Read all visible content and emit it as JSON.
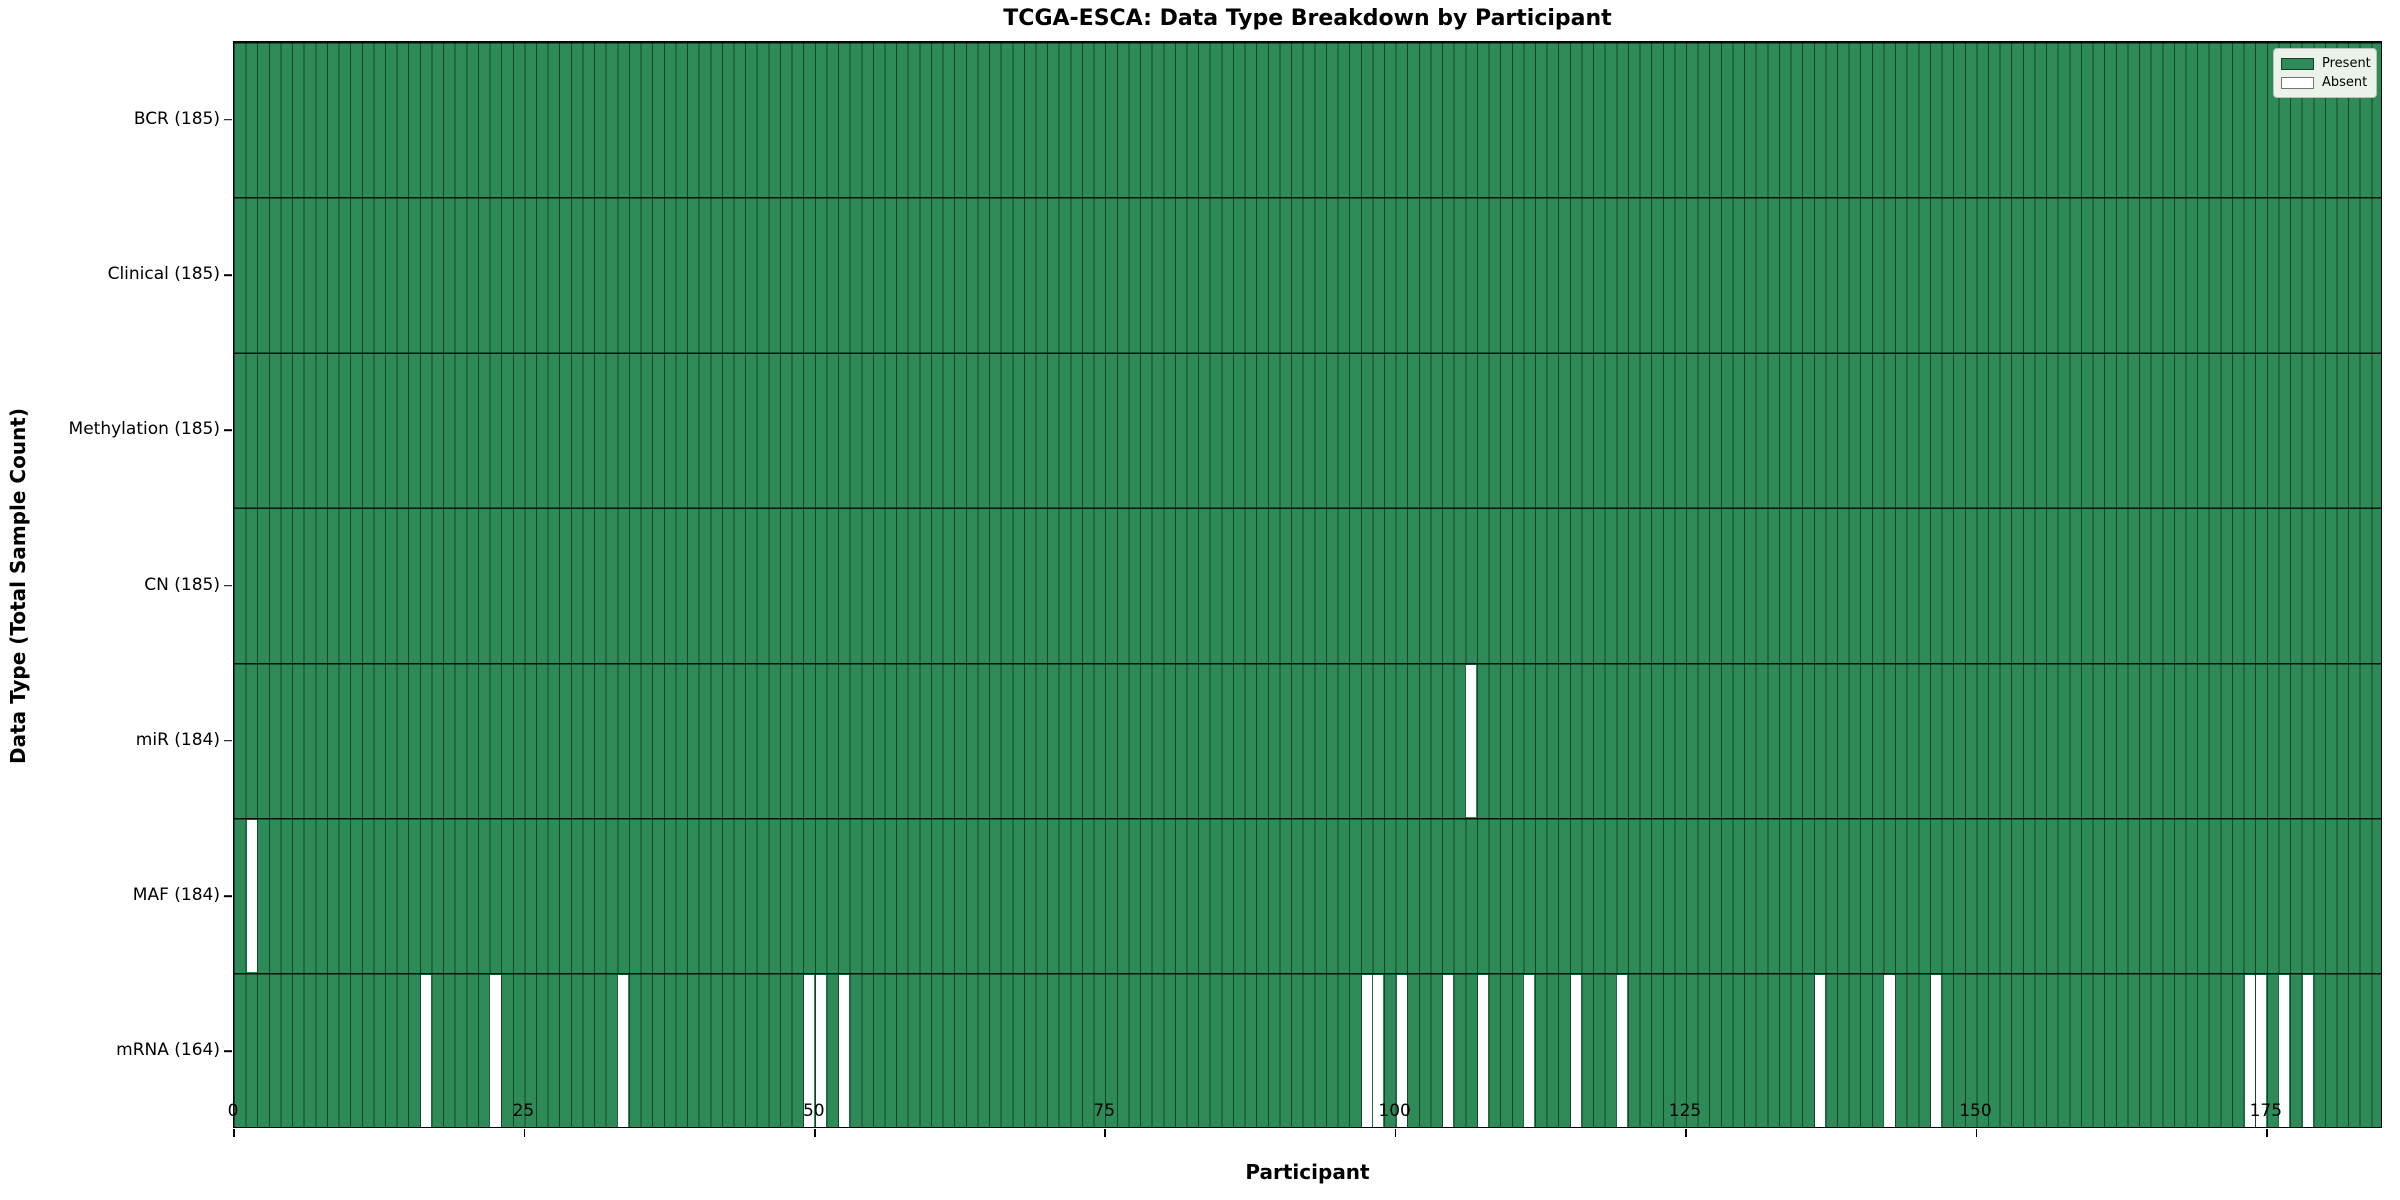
{
  "title": "TCGA-ESCA: Data Type Breakdown by Participant",
  "xlabel": "Participant",
  "ylabel": "Data Type (Total Sample Count)",
  "legend": {
    "present_label": "Present",
    "absent_label": "Absent"
  },
  "colors": {
    "present": "#2e8b57",
    "absent": "#ffffff",
    "edge_line": "#1a1a1a",
    "background": "#ffffff",
    "legend_bg": "#eaf2ea"
  },
  "chart_data": {
    "type": "heatmap",
    "title": "TCGA-ESCA: Data Type Breakdown by Participant",
    "xlabel": "Participant",
    "ylabel": "Data Type (Total Sample Count)",
    "n_participants": 185,
    "xlim": [
      0,
      185
    ],
    "x_ticks": [
      0,
      25,
      50,
      75,
      100,
      125,
      150,
      175
    ],
    "legend_entries": [
      {
        "label": "Present",
        "color": "#2e8b57"
      },
      {
        "label": "Absent",
        "color": "#ffffff"
      }
    ],
    "rows": [
      {
        "label": "BCR (185)",
        "data_type": "BCR",
        "present_count": 185,
        "absent_participants": []
      },
      {
        "label": "Clinical (185)",
        "data_type": "Clinical",
        "present_count": 185,
        "absent_participants": []
      },
      {
        "label": "Methylation (185)",
        "data_type": "Methylation",
        "present_count": 185,
        "absent_participants": []
      },
      {
        "label": "CN (185)",
        "data_type": "CN",
        "present_count": 185,
        "absent_participants": []
      },
      {
        "label": "miR (184)",
        "data_type": "miR",
        "present_count": 184,
        "absent_participants": [
          106
        ]
      },
      {
        "label": "MAF (184)",
        "data_type": "MAF",
        "present_count": 184,
        "absent_participants": [
          1
        ]
      },
      {
        "label": "mRNA (164)",
        "data_type": "mRNA",
        "present_count": 164,
        "absent_participants": [
          16,
          22,
          33,
          49,
          50,
          52,
          97,
          98,
          100,
          104,
          107,
          111,
          115,
          119,
          136,
          142,
          146,
          173,
          174,
          176,
          178
        ]
      }
    ]
  }
}
